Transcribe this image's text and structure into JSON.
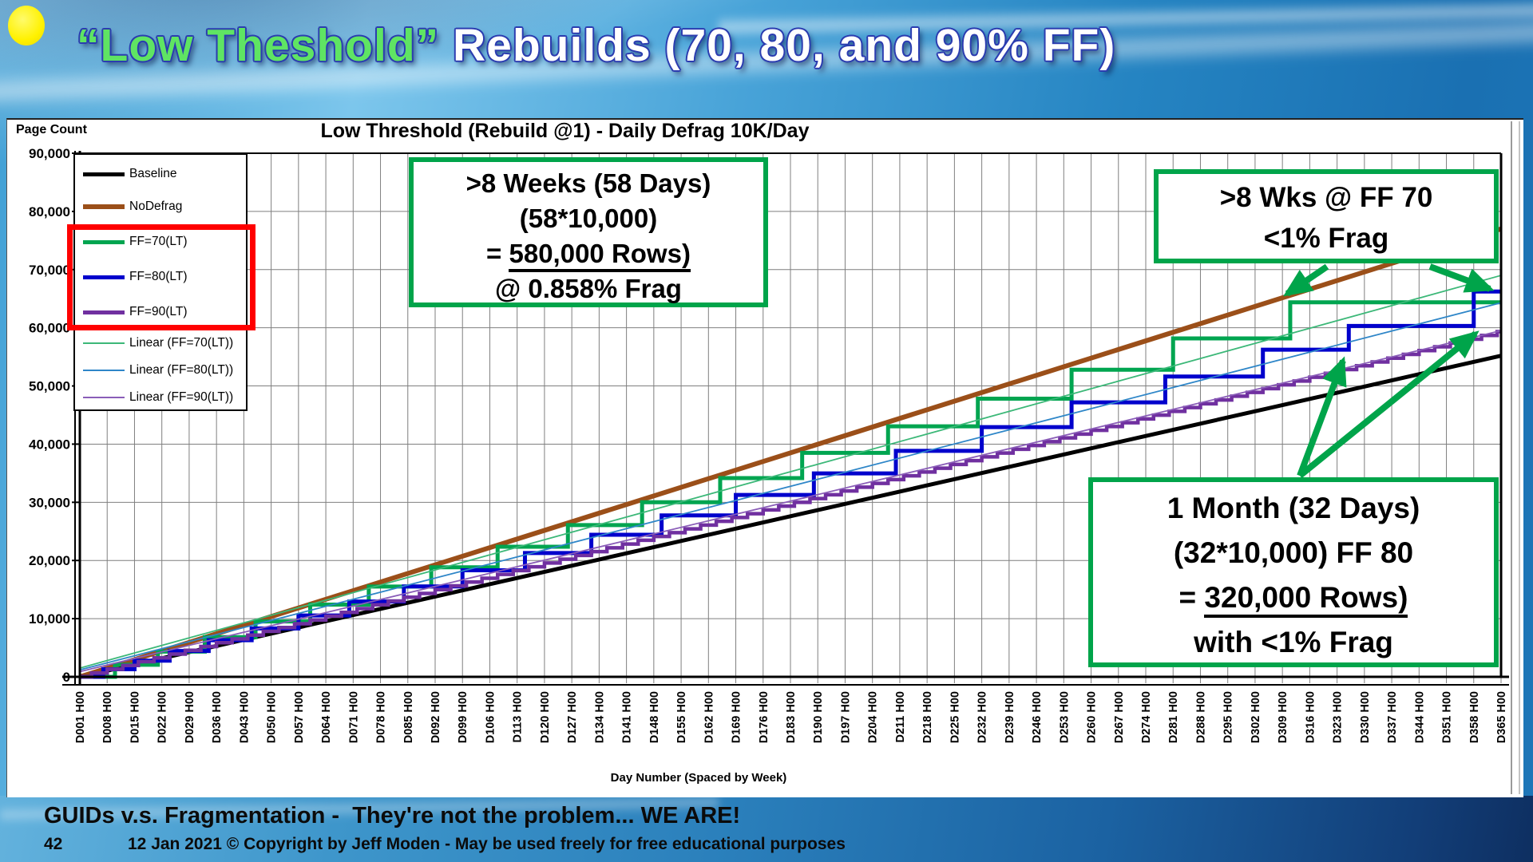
{
  "slide": {
    "title_green": "“Low Theshold”",
    "title_rest": " Rebuilds (70, 80, and 90% FF)",
    "footer_line1": "GUIDs v.s. Fragmentation -  They're not the problem... WE ARE!",
    "footer_page": "42",
    "footer_line2": "12 Jan 2021 © Copyright by Jeff Moden - May be used freely for free educational purposes"
  },
  "chart_data": {
    "type": "line",
    "title": "Low Threshold (Rebuild @1) - Daily Defrag 10K/Day",
    "ylabel": "Page Count",
    "xlabel": "Day Number (Spaced by Week)",
    "ylim": [
      0,
      90000
    ],
    "x_days": [
      1,
      365
    ],
    "grid": true,
    "legend_position": "top-left",
    "y_tick_labels": [
      "90,000",
      "80,000",
      "70,000",
      "60,000",
      "50,000",
      "40,000",
      "30,000",
      "20,000",
      "10,000",
      "0"
    ],
    "x_tick_labels": [
      "D001 H00",
      "D008 H00",
      "D015 H00",
      "D022 H00",
      "D029 H00",
      "D036 H00",
      "D043 H00",
      "D050 H00",
      "D057 H00",
      "D064 H00",
      "D071 H00",
      "D078 H00",
      "D085 H00",
      "D092 H00",
      "D099 H00",
      "D106 H00",
      "D113 H00",
      "D120 H00",
      "D127 H00",
      "D134 H00",
      "D141 H00",
      "D148 H00",
      "D155 H00",
      "D162 H00",
      "D169 H00",
      "D176 H00",
      "D183 H00",
      "D190 H00",
      "D197 H00",
      "D204 H00",
      "D211 H00",
      "D218 H00",
      "D225 H00",
      "D232 H00",
      "D239 H00",
      "D246 H00",
      "D253 H00",
      "D260 H00",
      "D267 H00",
      "D274 H00",
      "D281 H00",
      "D288 H00",
      "D295 H00",
      "D302 H00",
      "D309 H00",
      "D316 H00",
      "D323 H00",
      "D330 H00",
      "D337 H00",
      "D344 H00",
      "D351 H00",
      "D358 H00",
      "D365 H00"
    ],
    "series": [
      {
        "name": "Baseline",
        "color": "#000000",
        "width": 5,
        "kind": "linear",
        "points": [
          [
            1,
            0
          ],
          [
            365,
            55200
          ]
        ]
      },
      {
        "name": "NoDefrag",
        "color": "#9B4F19",
        "width": 6,
        "kind": "linear",
        "points": [
          [
            1,
            0
          ],
          [
            365,
            77000
          ]
        ]
      },
      {
        "name": "FF=70(LT)",
        "color": "#00A550",
        "width": 5,
        "kind": "steps",
        "pages_per_day": 207,
        "rebuild_days": [
          10,
          21,
          33,
          46,
          60,
          75,
          91,
          108,
          126,
          145,
          165,
          186,
          208,
          231,
          255,
          281,
          311
        ]
      },
      {
        "name": "FF=80(LT)",
        "color": "#0000CC",
        "width": 5,
        "kind": "steps",
        "pages_per_day": 185,
        "rebuild_days": [
          7,
          15,
          24,
          34,
          45,
          57,
          70,
          84,
          99,
          115,
          132,
          150,
          169,
          189,
          210,
          232,
          255,
          279,
          304,
          326,
          358
        ]
      },
      {
        "name": "FF=90(LT)",
        "color": "#7030A0",
        "width": 4.5,
        "kind": "stairs",
        "pages_per_day": 163,
        "interval_days": 4
      },
      {
        "name": "Linear (FF=70(LT))",
        "color": "#3CB878",
        "width": 1.8,
        "kind": "linear",
        "points": [
          [
            1,
            1500
          ],
          [
            365,
            69000
          ]
        ]
      },
      {
        "name": "Linear (FF=80(LT))",
        "color": "#2E86C8",
        "width": 1.8,
        "kind": "linear",
        "points": [
          [
            1,
            1200
          ],
          [
            365,
            64300
          ]
        ]
      },
      {
        "name": "Linear (FF=90(LT))",
        "color": "#8A5DB8",
        "width": 1.8,
        "kind": "linear",
        "points": [
          [
            1,
            900
          ],
          [
            365,
            59500
          ]
        ]
      }
    ],
    "annotations": {
      "box1": {
        "line1": ">8 Weeks (58 Days)",
        "line2": "(58*10,000)",
        "line3_prefix": "= ",
        "line3_underlined": "580,000 Rows)",
        "line4": "@ 0.858% Frag"
      },
      "box2": {
        "line1": ">8 Wks @ FF 70",
        "line2": "<1% Frag"
      },
      "box3": {
        "line1": "1 Month (32 Days)",
        "line2": "(32*10,000) FF 80",
        "line3_prefix": "= ",
        "line3_underlined": "320,000 Rows)",
        "line4": "with <1% Frag"
      },
      "arrow_color": "#00A44A",
      "arrows": [
        {
          "from": [
            1662,
            334
          ],
          "to": [
            1612,
            368
          ]
        },
        {
          "from": [
            1791,
            334
          ],
          "to": [
            1866,
            362
          ]
        },
        {
          "from": [
            1628,
            596
          ],
          "to": [
            1682,
            452
          ]
        },
        {
          "from": [
            1628,
            596
          ],
          "to": [
            1848,
            418
          ]
        }
      ],
      "highlight_color": "#FF0000"
    }
  }
}
